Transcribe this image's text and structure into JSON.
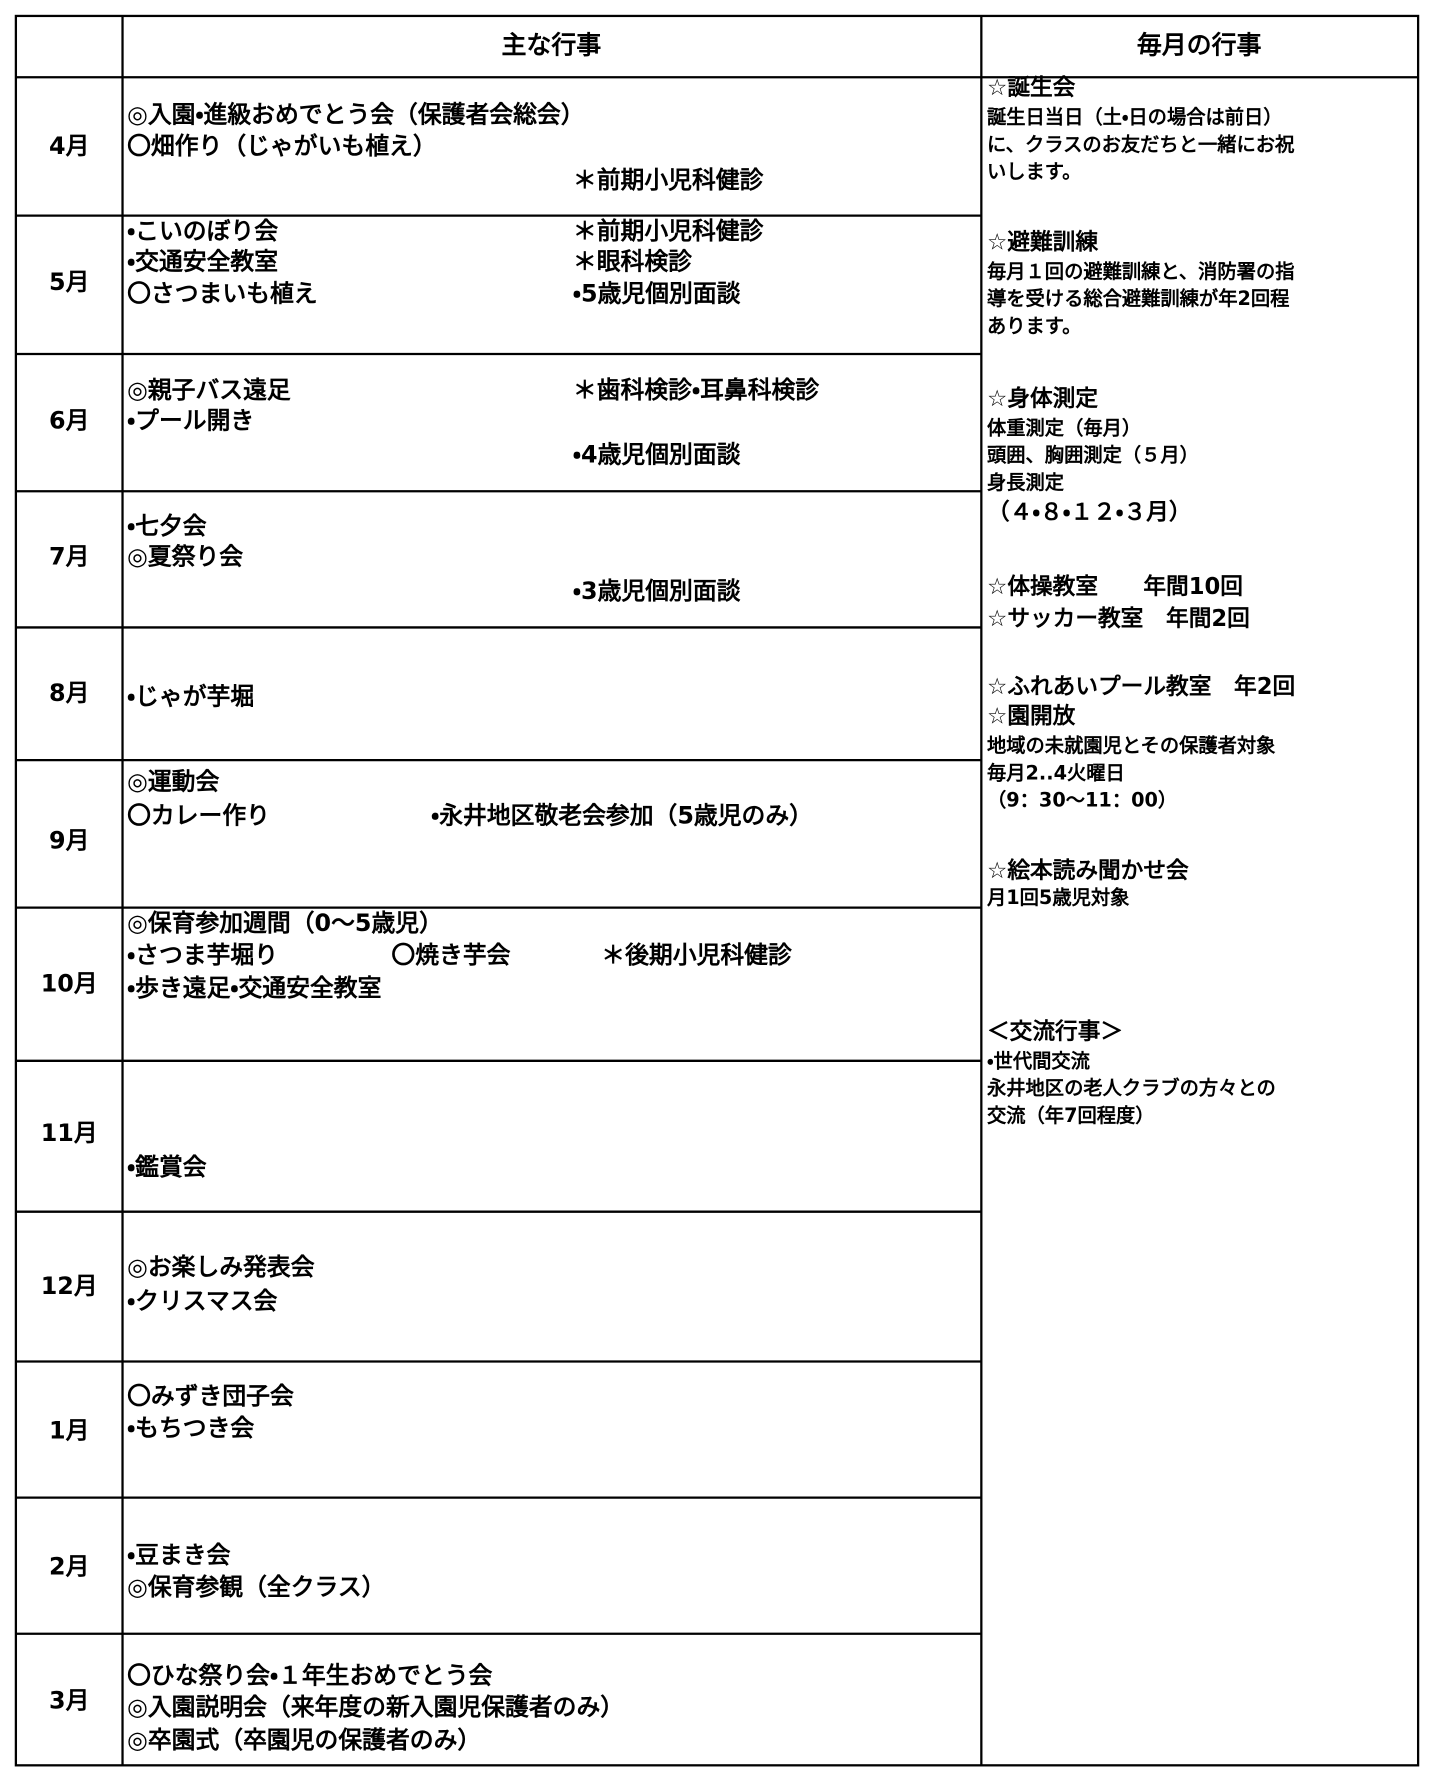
{
  "table": {
    "header": [
      "主な行事",
      "毎月の行事"
    ],
    "rows": [
      {
        "month": "4月",
        "items": [
          "◎入園・進級おめでとう会（保護者会総会）",
          "〇畑作り（じゃがいも植え）",
          "＊前期小児科健診"
        ]
      },
      {
        "month": "5月",
        "items": [
          "・こいのぼり会",
          "・交通安全教室",
          "〇さつまいも植え",
          "＊前期小児科健診",
          "＊眼科検診",
          "・5歳児個別面談"
        ]
      },
      {
        "month": "6月",
        "items": [
          "◎親子バス遠足",
          "＊歯科検診・耳鼻科検診",
          "・プール開き",
          "・4歳児個別面談"
        ]
      },
      {
        "month": "7月",
        "items": [
          "・七夕会",
          "◎夏祭り会",
          "・3歳児個別面談"
        ]
      },
      {
        "month": "8月",
        "items": [
          "・じゃが芋堀"
        ]
      },
      {
        "month": "9月",
        "items": [
          "◎運動会",
          "〇カレー作り",
          "・永井地区敬老会参加（5歳児のみ）"
        ]
      },
      {
        "month": "10月",
        "items": [
          "◎保育参加週間（0～5歳児）",
          "・さつま芋堀り",
          "〇焼き芋会",
          "＊後期小児科健診",
          "・歩き遠足・交通安全教室"
        ]
      },
      {
        "month": "11月",
        "items": [
          "・鑑賞会"
        ]
      },
      {
        "month": "12月",
        "items": [
          "◎お楽しみ発表会",
          "・クリスマス会"
        ]
      },
      {
        "month": "1月",
        "items": [
          "〇みずき団子会",
          "・もちつき会"
        ]
      },
      {
        "month": "2月",
        "items": [
          "・豆まき会",
          "◎保育参観（全クラス）"
        ]
      },
      {
        "month": "3月",
        "items": [
          "〇ひな祭り会・１年生おめでとう会",
          "◎入園説明会（来年度の新入園児保護者のみ）",
          "◎卒園式（卒園児の保護者のみ）"
        ]
      }
    ],
    "monthly": [
      "☆誕生会",
      "誕生日当日（土・日の場合は前日）",
      "に、クラスのお友だちと一緒にお祝",
      "いします。",
      "☆避難訓練",
      "毎月１回の避難訓練と、消防署の指",
      "導を受ける総合避難訓練が年2回程",
      "あります。",
      "☆身体測定",
      "体重測定（毎月）",
      "頭囲、胸囲測定（５月）",
      "身長測定",
      "（４・８・１２・３月）",
      "☆体操教室　　年間10回",
      "☆サッカー教室　年間2回",
      "☆ふれあいプール教室　年2回",
      "☆園開放",
      "地域の未就園児とその保護者対象",
      "毎月2..4火曜日",
      "（9：30～11：00）",
      "☆絵本読み聞かせ会",
      "月1回5歳児対象",
      "＜交流行事＞",
      "・世代間交流",
      "永井地区の老人クラブの方々との",
      "交流（年7回程度）"
    ]
  }
}
